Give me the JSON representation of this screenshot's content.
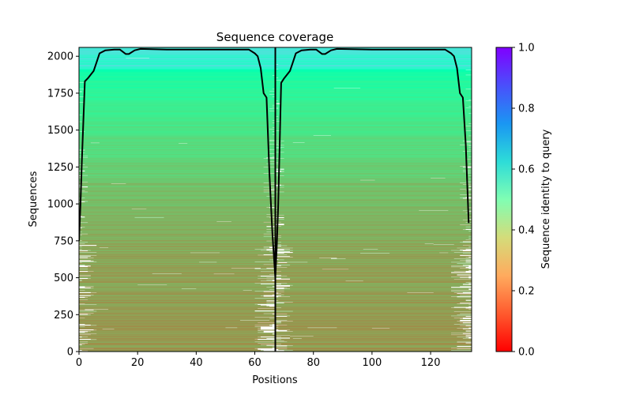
{
  "chart_data": {
    "type": "heatmap",
    "title": "Sequence coverage",
    "xlabel": "Positions",
    "ylabel": "Sequences",
    "colorbar_label": "Sequence identity to query",
    "colormap": "rainbow_r",
    "xlim": [
      0,
      134
    ],
    "ylim": [
      0,
      2060
    ],
    "xticks": [
      0,
      20,
      40,
      60,
      80,
      100,
      120
    ],
    "yticks": [
      0,
      250,
      500,
      750,
      1000,
      1250,
      1500,
      1750,
      2000
    ],
    "colorbar_ticks": [
      "0.0",
      "0.2",
      "0.4",
      "0.6",
      "0.8",
      "1.0"
    ],
    "colorbar_range": [
      0,
      1
    ],
    "num_sequences": 2060,
    "segment_boundary": 67,
    "identity_profile": [
      {
        "seq": 0,
        "identity": 0.2
      },
      {
        "seq": 600,
        "identity": 0.22
      },
      {
        "seq": 1000,
        "identity": 0.26
      },
      {
        "seq": 1400,
        "identity": 0.33
      },
      {
        "seq": 1700,
        "identity": 0.4
      },
      {
        "seq": 1900,
        "identity": 0.46
      },
      {
        "seq": 1920,
        "identity": 0.58
      },
      {
        "seq": 2060,
        "identity": 0.62
      }
    ],
    "series": [
      {
        "values": [
          [
            0,
            750
          ],
          [
            0.5,
            1000
          ],
          [
            1,
            1300
          ],
          [
            2,
            1830
          ],
          [
            3,
            1850
          ],
          [
            5,
            1900
          ],
          [
            6,
            1960
          ],
          [
            7,
            2020
          ],
          [
            9,
            2040
          ],
          [
            12,
            2045
          ],
          [
            14,
            2045
          ],
          [
            16,
            2015
          ],
          [
            17,
            2015
          ],
          [
            19,
            2040
          ],
          [
            21,
            2050
          ],
          [
            30,
            2045
          ],
          [
            40,
            2045
          ],
          [
            50,
            2045
          ],
          [
            58,
            2045
          ],
          [
            60,
            2020
          ],
          [
            61,
            2000
          ],
          [
            62,
            1920
          ],
          [
            63,
            1750
          ],
          [
            64,
            1720
          ],
          [
            65,
            1200
          ],
          [
            66,
            800
          ],
          [
            67,
            500
          ],
          [
            67.5,
            720
          ],
          [
            68,
            1000
          ],
          [
            69,
            1820
          ],
          [
            70,
            1850
          ],
          [
            72,
            1900
          ],
          [
            73,
            1960
          ],
          [
            74,
            2020
          ],
          [
            76,
            2040
          ],
          [
            79,
            2045
          ],
          [
            81,
            2045
          ],
          [
            83,
            2015
          ],
          [
            84,
            2015
          ],
          [
            86,
            2040
          ],
          [
            88,
            2050
          ],
          [
            100,
            2045
          ],
          [
            110,
            2045
          ],
          [
            120,
            2045
          ],
          [
            125,
            2045
          ],
          [
            127,
            2020
          ],
          [
            128,
            2000
          ],
          [
            129,
            1920
          ],
          [
            130,
            1750
          ],
          [
            131,
            1720
          ],
          [
            132,
            1400
          ],
          [
            133,
            870
          ]
        ]
      }
    ]
  }
}
